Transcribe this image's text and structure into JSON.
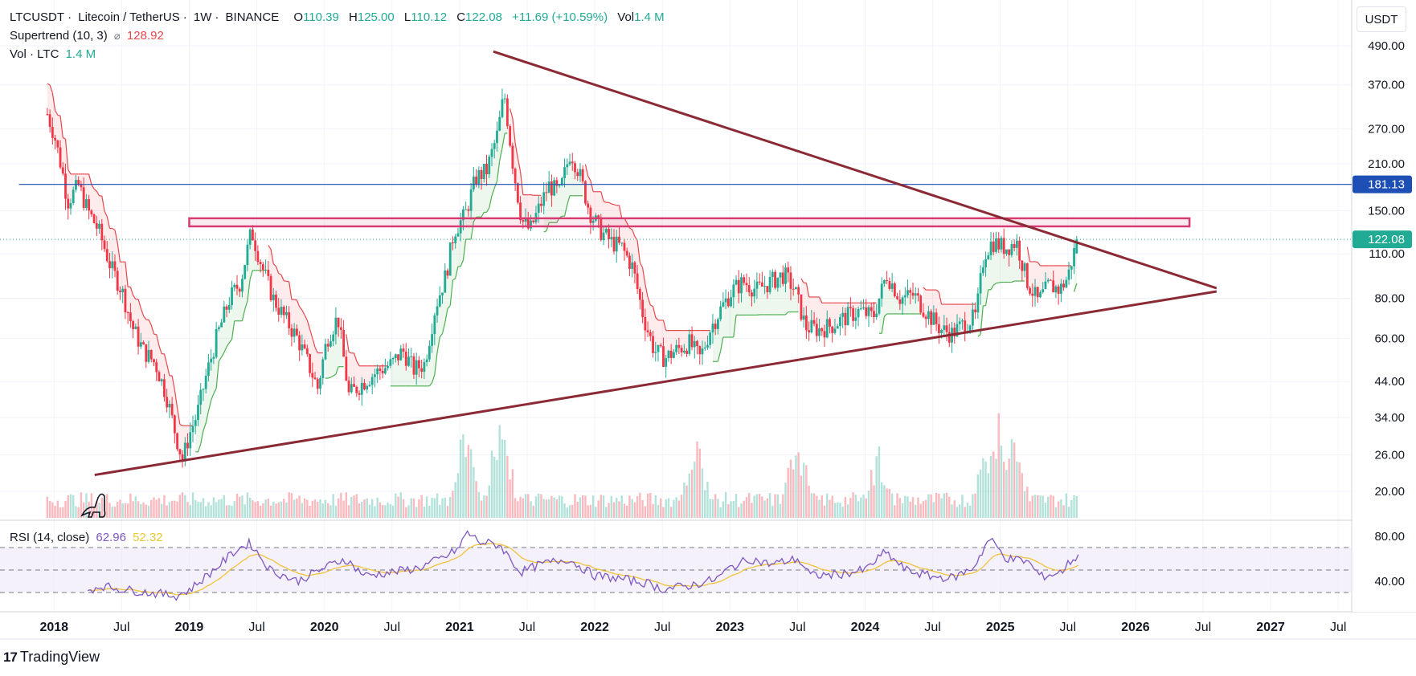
{
  "header": {
    "symbol": "LTCUSDT",
    "name": "Litecoin / TetherUS",
    "interval": "1W",
    "exchange": "BINANCE",
    "open_label": "O",
    "open": "110.39",
    "high_label": "H",
    "high": "125.00",
    "low_label": "L",
    "low": "110.12",
    "close_label": "C",
    "close": "122.08",
    "change": "+11.69 (+10.59%)",
    "vol_label": "Vol",
    "vol": "1.4 M",
    "separator": "·"
  },
  "indicators": {
    "supertrend": {
      "label": "Supertrend (10, 3)",
      "value": "128.92",
      "icon": "eye-off-icon"
    },
    "volume": {
      "label": "Vol · LTC",
      "value": "1.4 M"
    },
    "rsi": {
      "label": "RSI (14, close)",
      "value": "62.96",
      "ma_value": "52.32"
    }
  },
  "currency_button": "USDT",
  "branding": {
    "logo_text": "TradingView",
    "logo_mark": "17"
  },
  "colors": {
    "up": "#22ab94",
    "down": "#f23645",
    "supertrend_up": "#4caf50",
    "supertrend_down": "#e5484d",
    "trend_lines": "#8b2a35",
    "resistance_box": "#d63b72",
    "horizontal_line": "#1e4fb4",
    "rsi_line": "#7e57c2",
    "rsi_ma": "#f0c33c",
    "rsi_band": "#ede7f6"
  },
  "chart_data": {
    "type": "candlestick",
    "scale": "log",
    "price_axis": [
      "490.00",
      "370.00",
      "270.00",
      "210.00",
      "150.00",
      "110.00",
      "80.00",
      "60.00",
      "44.00",
      "34.00",
      "26.00",
      "20.00"
    ],
    "price_axis_values": [
      490,
      370,
      270,
      210,
      150,
      110,
      80,
      60,
      44,
      34,
      26,
      20
    ],
    "price_labels": [
      {
        "text": "181.13",
        "value": 181.13,
        "color": "#1e4fb4"
      },
      {
        "text": "122.08",
        "value": 122.08,
        "color": "#22ab94"
      }
    ],
    "time_axis": [
      {
        "label": "2018",
        "t": 2018.0,
        "bold": true
      },
      {
        "label": "Jul",
        "t": 2018.5,
        "bold": false
      },
      {
        "label": "2019",
        "t": 2019.0,
        "bold": true
      },
      {
        "label": "Jul",
        "t": 2019.5,
        "bold": false
      },
      {
        "label": "2020",
        "t": 2020.0,
        "bold": true
      },
      {
        "label": "Jul",
        "t": 2020.5,
        "bold": false
      },
      {
        "label": "2021",
        "t": 2021.0,
        "bold": true
      },
      {
        "label": "Jul",
        "t": 2021.5,
        "bold": false
      },
      {
        "label": "2022",
        "t": 2022.0,
        "bold": true
      },
      {
        "label": "Jul",
        "t": 2022.5,
        "bold": false
      },
      {
        "label": "2023",
        "t": 2023.0,
        "bold": true
      },
      {
        "label": "Jul",
        "t": 2023.5,
        "bold": false
      },
      {
        "label": "2024",
        "t": 2024.0,
        "bold": true
      },
      {
        "label": "Jul",
        "t": 2024.5,
        "bold": false
      },
      {
        "label": "2025",
        "t": 2025.0,
        "bold": true
      },
      {
        "label": "Jul",
        "t": 2025.5,
        "bold": false
      },
      {
        "label": "2026",
        "t": 2026.0,
        "bold": true
      },
      {
        "label": "Jul",
        "t": 2026.5,
        "bold": false
      },
      {
        "label": "2027",
        "t": 2027.0,
        "bold": true
      },
      {
        "label": "Jul",
        "t": 2027.5,
        "bold": false
      }
    ],
    "xlim": [
      2017.6,
      2027.6
    ],
    "price_anchors": [
      [
        2017.95,
        300
      ],
      [
        2018.0,
        260
      ],
      [
        2018.06,
        200
      ],
      [
        2018.1,
        160
      ],
      [
        2018.18,
        180
      ],
      [
        2018.25,
        150
      ],
      [
        2018.33,
        130
      ],
      [
        2018.42,
        100
      ],
      [
        2018.5,
        85
      ],
      [
        2018.58,
        65
      ],
      [
        2018.66,
        55
      ],
      [
        2018.75,
        50
      ],
      [
        2018.83,
        40
      ],
      [
        2018.9,
        30
      ],
      [
        2018.95,
        25
      ],
      [
        2019.0,
        30
      ],
      [
        2019.06,
        35
      ],
      [
        2019.12,
        45
      ],
      [
        2019.2,
        60
      ],
      [
        2019.3,
        80
      ],
      [
        2019.38,
        90
      ],
      [
        2019.46,
        130
      ],
      [
        2019.54,
        100
      ],
      [
        2019.62,
        80
      ],
      [
        2019.7,
        70
      ],
      [
        2019.8,
        60
      ],
      [
        2019.88,
        50
      ],
      [
        2019.95,
        42
      ],
      [
        2020.02,
        60
      ],
      [
        2020.1,
        70
      ],
      [
        2020.18,
        40
      ],
      [
        2020.24,
        42
      ],
      [
        2020.32,
        45
      ],
      [
        2020.42,
        48
      ],
      [
        2020.5,
        50
      ],
      [
        2020.58,
        55
      ],
      [
        2020.66,
        48
      ],
      [
        2020.74,
        50
      ],
      [
        2020.82,
        75
      ],
      [
        2020.9,
        95
      ],
      [
        2020.96,
        130
      ],
      [
        2021.04,
        145
      ],
      [
        2021.12,
        190
      ],
      [
        2021.2,
        200
      ],
      [
        2021.28,
        260
      ],
      [
        2021.33,
        350
      ],
      [
        2021.4,
        200
      ],
      [
        2021.46,
        140
      ],
      [
        2021.52,
        130
      ],
      [
        2021.58,
        150
      ],
      [
        2021.66,
        180
      ],
      [
        2021.74,
        170
      ],
      [
        2021.82,
        230
      ],
      [
        2021.88,
        200
      ],
      [
        2021.96,
        150
      ],
      [
        2022.04,
        130
      ],
      [
        2022.12,
        120
      ],
      [
        2022.2,
        115
      ],
      [
        2022.28,
        100
      ],
      [
        2022.36,
        70
      ],
      [
        2022.44,
        55
      ],
      [
        2022.52,
        52
      ],
      [
        2022.6,
        55
      ],
      [
        2022.7,
        58
      ],
      [
        2022.78,
        52
      ],
      [
        2022.86,
        65
      ],
      [
        2022.94,
        75
      ],
      [
        2023.02,
        85
      ],
      [
        2023.1,
        90
      ],
      [
        2023.2,
        85
      ],
      [
        2023.3,
        90
      ],
      [
        2023.4,
        95
      ],
      [
        2023.48,
        85
      ],
      [
        2023.56,
        65
      ],
      [
        2023.66,
        64
      ],
      [
        2023.76,
        66
      ],
      [
        2023.86,
        70
      ],
      [
        2023.96,
        73
      ],
      [
        2024.06,
        70
      ],
      [
        2024.16,
        95
      ],
      [
        2024.26,
        80
      ],
      [
        2024.36,
        82
      ],
      [
        2024.46,
        72
      ],
      [
        2024.56,
        64
      ],
      [
        2024.64,
        62
      ],
      [
        2024.74,
        67
      ],
      [
        2024.82,
        70
      ],
      [
        2024.88,
        110
      ],
      [
        2024.94,
        120
      ],
      [
        2025.04,
        115
      ],
      [
        2025.12,
        120
      ],
      [
        2025.2,
        90
      ],
      [
        2025.28,
        78
      ],
      [
        2025.36,
        88
      ],
      [
        2025.44,
        85
      ],
      [
        2025.5,
        93
      ],
      [
        2025.54,
        110
      ],
      [
        2025.58,
        122.08
      ]
    ],
    "volume_peaks": [
      [
        2021.3,
        1.0
      ],
      [
        2021.05,
        0.85
      ],
      [
        2025.0,
        0.9
      ],
      [
        2024.9,
        0.7
      ],
      [
        2022.75,
        0.7
      ],
      [
        2023.5,
        0.75
      ],
      [
        2024.1,
        0.6
      ],
      [
        2025.1,
        0.8
      ]
    ],
    "trend_lines": [
      {
        "from": [
          2021.25,
          470
        ],
        "to": [
          2026.6,
          86
        ]
      },
      {
        "from": [
          2018.3,
          22.5
        ],
        "to": [
          2026.6,
          84
        ]
      }
    ],
    "horizontal_line": {
      "value": 181.13
    },
    "resistance_box": {
      "t_start": 2019.0,
      "t_end": 2026.4,
      "top": 142,
      "bottom": 134
    },
    "rsi": {
      "axis": [
        "80.00",
        "40.00"
      ],
      "axis_values": [
        80,
        40
      ],
      "bands": [
        70,
        50,
        30
      ],
      "ylim": [
        20,
        90
      ],
      "anchors": [
        [
          2018.25,
          32
        ],
        [
          2018.35,
          36
        ],
        [
          2018.5,
          33
        ],
        [
          2018.7,
          30
        ],
        [
          2018.9,
          27
        ],
        [
          2019.0,
          32
        ],
        [
          2019.2,
          52
        ],
        [
          2019.35,
          68
        ],
        [
          2019.45,
          74
        ],
        [
          2019.6,
          50
        ],
        [
          2019.8,
          40
        ],
        [
          2020.0,
          52
        ],
        [
          2020.15,
          60
        ],
        [
          2020.3,
          45
        ],
        [
          2020.5,
          48
        ],
        [
          2020.7,
          52
        ],
        [
          2020.9,
          62
        ],
        [
          2021.0,
          70
        ],
        [
          2021.05,
          84
        ],
        [
          2021.15,
          75
        ],
        [
          2021.3,
          72
        ],
        [
          2021.45,
          48
        ],
        [
          2021.6,
          55
        ],
        [
          2021.8,
          60
        ],
        [
          2022.0,
          45
        ],
        [
          2022.2,
          42
        ],
        [
          2022.4,
          38
        ],
        [
          2022.5,
          33
        ],
        [
          2022.7,
          36
        ],
        [
          2022.9,
          42
        ],
        [
          2023.0,
          52
        ],
        [
          2023.15,
          60
        ],
        [
          2023.3,
          55
        ],
        [
          2023.5,
          60
        ],
        [
          2023.6,
          45
        ],
        [
          2023.8,
          46
        ],
        [
          2024.0,
          50
        ],
        [
          2024.15,
          66
        ],
        [
          2024.3,
          50
        ],
        [
          2024.5,
          44
        ],
        [
          2024.65,
          43
        ],
        [
          2024.8,
          52
        ],
        [
          2024.92,
          78
        ],
        [
          2025.05,
          60
        ],
        [
          2025.2,
          58
        ],
        [
          2025.3,
          44
        ],
        [
          2025.45,
          48
        ],
        [
          2025.52,
          58
        ],
        [
          2025.58,
          62.96
        ]
      ]
    }
  }
}
